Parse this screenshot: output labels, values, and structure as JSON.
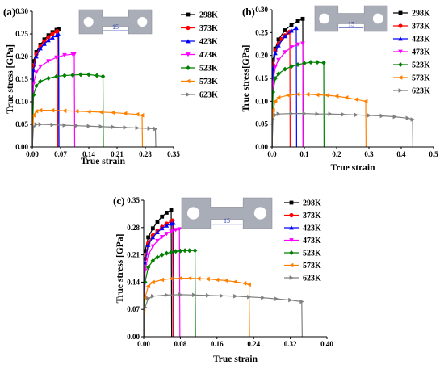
{
  "chart_data": [
    {
      "panel": "(a)",
      "type": "line",
      "xlabel": "True strain",
      "ylabel": "True stress [GPa]",
      "xlim": [
        0,
        0.35
      ],
      "ylim": [
        0,
        0.3
      ],
      "xticks": [
        "0.00",
        "0.07",
        "0.14",
        "0.21",
        "0.28",
        "0.35"
      ],
      "yticks": [
        "0.00",
        "0.05",
        "0.10",
        "0.15",
        "0.20",
        "0.25",
        "0.30"
      ],
      "specimen_dimension": "15",
      "legend_position": "top-right",
      "series": [
        {
          "name": "298K",
          "color": "#000000",
          "marker": "square",
          "x": [
            0,
            0.003,
            0.01,
            0.02,
            0.03,
            0.04,
            0.05,
            0.06,
            0.065,
            0.066
          ],
          "y": [
            0,
            0.19,
            0.21,
            0.226,
            0.238,
            0.247,
            0.254,
            0.259,
            0.26,
            0
          ]
        },
        {
          "name": "373K",
          "color": "#ff0000",
          "marker": "circle",
          "x": [
            0,
            0.003,
            0.01,
            0.02,
            0.03,
            0.04,
            0.05,
            0.06,
            0.062,
            0.063
          ],
          "y": [
            0,
            0.18,
            0.205,
            0.222,
            0.234,
            0.243,
            0.25,
            0.255,
            0.256,
            0
          ]
        },
        {
          "name": "423K",
          "color": "#0000ff",
          "marker": "triangle-up",
          "x": [
            0,
            0.003,
            0.01,
            0.02,
            0.03,
            0.04,
            0.05,
            0.06,
            0.065,
            0.066
          ],
          "y": [
            0,
            0.17,
            0.2,
            0.218,
            0.228,
            0.236,
            0.242,
            0.247,
            0.249,
            0
          ]
        },
        {
          "name": "473K",
          "color": "#ff00ff",
          "marker": "triangle-down",
          "x": [
            0,
            0.003,
            0.01,
            0.02,
            0.04,
            0.06,
            0.08,
            0.1,
            0.104,
            0.105
          ],
          "y": [
            0,
            0.14,
            0.165,
            0.178,
            0.19,
            0.198,
            0.203,
            0.205,
            0.205,
            0
          ]
        },
        {
          "name": "523K",
          "color": "#008000",
          "marker": "diamond",
          "x": [
            0,
            0.003,
            0.01,
            0.02,
            0.04,
            0.06,
            0.08,
            0.1,
            0.12,
            0.14,
            0.16,
            0.175,
            0.176
          ],
          "y": [
            0,
            0.115,
            0.135,
            0.145,
            0.152,
            0.156,
            0.158,
            0.159,
            0.16,
            0.16,
            0.158,
            0.156,
            0
          ]
        },
        {
          "name": "573K",
          "color": "#ff8000",
          "marker": "triangle-left",
          "x": [
            0,
            0.003,
            0.01,
            0.02,
            0.05,
            0.08,
            0.11,
            0.14,
            0.17,
            0.2,
            0.23,
            0.26,
            0.272,
            0.273
          ],
          "y": [
            0,
            0.07,
            0.079,
            0.081,
            0.081,
            0.08,
            0.079,
            0.078,
            0.077,
            0.076,
            0.074,
            0.072,
            0.07,
            0
          ]
        },
        {
          "name": "623K",
          "color": "#808080",
          "marker": "triangle-right",
          "x": [
            0,
            0.003,
            0.01,
            0.02,
            0.05,
            0.08,
            0.11,
            0.14,
            0.17,
            0.2,
            0.23,
            0.26,
            0.29,
            0.305,
            0.306
          ],
          "y": [
            0,
            0.045,
            0.05,
            0.05,
            0.049,
            0.048,
            0.047,
            0.046,
            0.045,
            0.044,
            0.043,
            0.042,
            0.041,
            0.04,
            0
          ]
        }
      ]
    },
    {
      "panel": "(b)",
      "type": "line",
      "xlabel": "True strain",
      "ylabel": "True stress[GPa]",
      "xlim": [
        0,
        0.5
      ],
      "ylim": [
        0,
        0.3
      ],
      "xticks": [
        "0.0",
        "0.1",
        "0.2",
        "0.3",
        "0.4",
        "0.5"
      ],
      "yticks": [
        "0.00",
        "0.05",
        "0.10",
        "0.15",
        "0.20",
        "0.25",
        "0.30"
      ],
      "specimen_dimension": "15",
      "legend_position": "top-right",
      "series": [
        {
          "name": "298K",
          "color": "#000000",
          "marker": "square",
          "x": [
            0,
            0.003,
            0.01,
            0.02,
            0.04,
            0.06,
            0.08,
            0.095,
            0.096
          ],
          "y": [
            0,
            0.19,
            0.215,
            0.235,
            0.255,
            0.267,
            0.275,
            0.28,
            0
          ]
        },
        {
          "name": "373K",
          "color": "#ff0000",
          "marker": "circle",
          "x": [
            0,
            0.003,
            0.01,
            0.02,
            0.03,
            0.04,
            0.05,
            0.055,
            0.056
          ],
          "y": [
            0,
            0.18,
            0.21,
            0.225,
            0.236,
            0.244,
            0.25,
            0.252,
            0
          ]
        },
        {
          "name": "423K",
          "color": "#0000ff",
          "marker": "triangle-up",
          "x": [
            0,
            0.003,
            0.01,
            0.02,
            0.04,
            0.06,
            0.075,
            0.076
          ],
          "y": [
            0,
            0.17,
            0.205,
            0.222,
            0.242,
            0.254,
            0.26,
            0
          ]
        },
        {
          "name": "473K",
          "color": "#ff00ff",
          "marker": "triangle-down",
          "x": [
            0,
            0.003,
            0.01,
            0.02,
            0.04,
            0.06,
            0.08,
            0.095,
            0.096
          ],
          "y": [
            0,
            0.14,
            0.175,
            0.19,
            0.207,
            0.218,
            0.224,
            0.226,
            0
          ]
        },
        {
          "name": "523K",
          "color": "#008000",
          "marker": "diamond",
          "x": [
            0,
            0.003,
            0.01,
            0.02,
            0.04,
            0.06,
            0.08,
            0.1,
            0.12,
            0.14,
            0.16,
            0.161
          ],
          "y": [
            0,
            0.12,
            0.15,
            0.16,
            0.17,
            0.176,
            0.18,
            0.183,
            0.185,
            0.185,
            0.184,
            0
          ]
        },
        {
          "name": "573K",
          "color": "#ff8000",
          "marker": "triangle-left",
          "x": [
            0,
            0.003,
            0.01,
            0.02,
            0.05,
            0.08,
            0.11,
            0.14,
            0.17,
            0.2,
            0.23,
            0.26,
            0.29,
            0.291
          ],
          "y": [
            0,
            0.08,
            0.1,
            0.108,
            0.113,
            0.115,
            0.115,
            0.114,
            0.113,
            0.111,
            0.108,
            0.104,
            0.1,
            0
          ]
        },
        {
          "name": "623K",
          "color": "#808080",
          "marker": "triangle-right",
          "x": [
            0,
            0.003,
            0.01,
            0.02,
            0.06,
            0.1,
            0.14,
            0.18,
            0.22,
            0.26,
            0.3,
            0.34,
            0.38,
            0.42,
            0.435,
            0.436
          ],
          "y": [
            0,
            0.06,
            0.07,
            0.072,
            0.073,
            0.073,
            0.072,
            0.072,
            0.071,
            0.07,
            0.069,
            0.068,
            0.066,
            0.063,
            0.06,
            0
          ]
        }
      ]
    },
    {
      "panel": "(c)",
      "type": "line",
      "xlabel": "True strain",
      "ylabel": "True stress [GPa]",
      "xlim": [
        0,
        0.4
      ],
      "ylim": [
        0,
        0.35
      ],
      "xticks": [
        "0.00",
        "0.08",
        "0.16",
        "0.24",
        "0.32",
        "0.40"
      ],
      "yticks": [
        "0.00",
        "0.07",
        "0.14",
        "0.21",
        "0.28",
        "0.35"
      ],
      "specimen_dimension": "15",
      "legend_position": "top-right",
      "series": [
        {
          "name": "298K",
          "color": "#000000",
          "marker": "square",
          "x": [
            0,
            0.003,
            0.01,
            0.02,
            0.03,
            0.04,
            0.05,
            0.06,
            0.061
          ],
          "y": [
            0,
            0.22,
            0.255,
            0.278,
            0.295,
            0.308,
            0.318,
            0.325,
            0
          ]
        },
        {
          "name": "373K",
          "color": "#ff0000",
          "marker": "circle",
          "x": [
            0,
            0.003,
            0.01,
            0.02,
            0.03,
            0.04,
            0.05,
            0.06,
            0.063,
            0.064
          ],
          "y": [
            0,
            0.2,
            0.24,
            0.26,
            0.272,
            0.282,
            0.29,
            0.296,
            0.298,
            0
          ]
        },
        {
          "name": "423K",
          "color": "#0000ff",
          "marker": "triangle-up",
          "x": [
            0,
            0.003,
            0.01,
            0.02,
            0.03,
            0.04,
            0.05,
            0.06,
            0.065,
            0.066
          ],
          "y": [
            0,
            0.19,
            0.235,
            0.255,
            0.268,
            0.278,
            0.285,
            0.29,
            0.292,
            0
          ]
        },
        {
          "name": "473K",
          "color": "#ff00ff",
          "marker": "triangle-down",
          "x": [
            0,
            0.003,
            0.01,
            0.02,
            0.03,
            0.04,
            0.05,
            0.06,
            0.07,
            0.078,
            0.079
          ],
          "y": [
            0,
            0.17,
            0.21,
            0.232,
            0.246,
            0.256,
            0.264,
            0.27,
            0.274,
            0.276,
            0
          ]
        },
        {
          "name": "523K",
          "color": "#008000",
          "marker": "diamond",
          "x": [
            0,
            0.003,
            0.01,
            0.02,
            0.03,
            0.04,
            0.05,
            0.06,
            0.07,
            0.08,
            0.09,
            0.1,
            0.112,
            0.113
          ],
          "y": [
            0,
            0.14,
            0.178,
            0.195,
            0.204,
            0.21,
            0.214,
            0.217,
            0.219,
            0.22,
            0.221,
            0.221,
            0.221,
            0
          ]
        },
        {
          "name": "573K",
          "color": "#ff8000",
          "marker": "triangle-left",
          "x": [
            0,
            0.003,
            0.01,
            0.02,
            0.04,
            0.06,
            0.08,
            0.1,
            0.12,
            0.14,
            0.16,
            0.18,
            0.2,
            0.22,
            0.23,
            0.231
          ],
          "y": [
            0,
            0.1,
            0.13,
            0.14,
            0.146,
            0.149,
            0.15,
            0.15,
            0.149,
            0.148,
            0.146,
            0.144,
            0.141,
            0.137,
            0.134,
            0
          ]
        },
        {
          "name": "623K",
          "color": "#808080",
          "marker": "triangle-right",
          "x": [
            0,
            0.003,
            0.01,
            0.02,
            0.05,
            0.08,
            0.11,
            0.14,
            0.17,
            0.2,
            0.23,
            0.26,
            0.29,
            0.32,
            0.345,
            0.346
          ],
          "y": [
            0,
            0.075,
            0.098,
            0.104,
            0.107,
            0.108,
            0.107,
            0.106,
            0.105,
            0.104,
            0.102,
            0.1,
            0.097,
            0.094,
            0.09,
            0
          ]
        }
      ]
    }
  ]
}
